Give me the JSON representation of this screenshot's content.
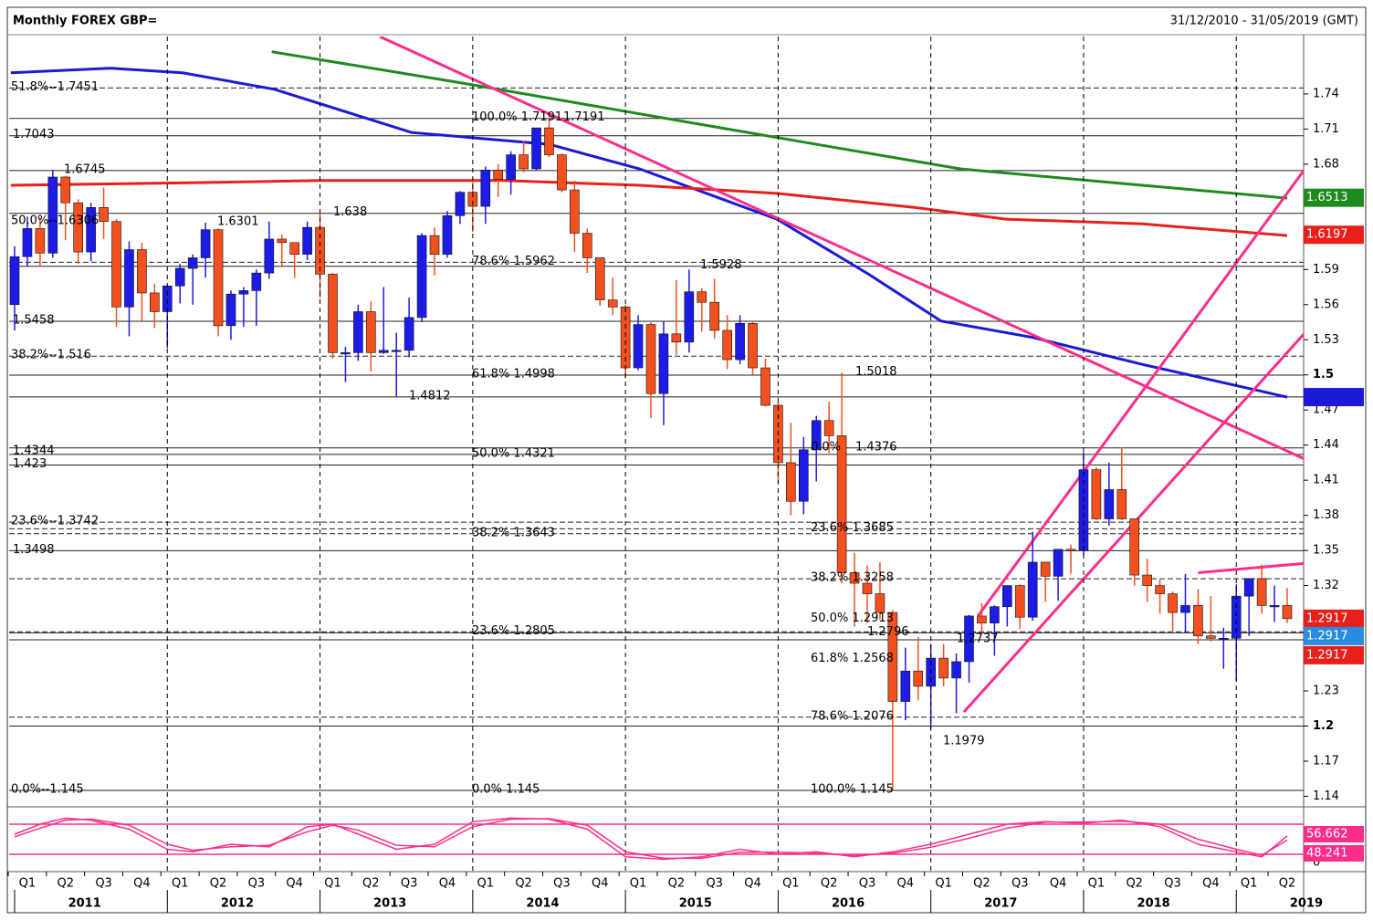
{
  "chart_data": {
    "type": "candlestick",
    "title": "Monthly FOREX GBP=",
    "subtitle": "31/12/2010 - 31/05/2019 (GMT)",
    "ylim": [
      1.131,
      1.814
    ],
    "yticks": [
      1.74,
      1.71,
      1.68,
      1.59,
      1.56,
      1.53,
      1.5,
      1.47,
      1.44,
      1.41,
      1.38,
      1.35,
      1.32,
      1.23,
      1.2,
      1.17,
      1.14
    ],
    "years": [
      2011,
      2012,
      2013,
      2014,
      2015,
      2016,
      2017,
      2018,
      2019
    ],
    "quarters": [
      "Q1",
      "Q2",
      "Q3",
      "Q4",
      "Q1",
      "Q2",
      "Q3",
      "Q4",
      "Q1",
      "Q2",
      "Q3",
      "Q4",
      "Q1",
      "Q2",
      "Q3",
      "Q4",
      "Q1",
      "Q2",
      "Q3",
      "Q4",
      "Q1",
      "Q2",
      "Q3",
      "Q4",
      "Q1",
      "Q2",
      "Q3",
      "Q4",
      "Q1",
      "Q2",
      "Q3",
      "Q4",
      "Q1",
      "Q2"
    ],
    "up_color": "#1c1ce6",
    "down_color": "#f2511f",
    "open": [
      1.56,
      1.601,
      1.625,
      1.604,
      1.669,
      1.647,
      1.605,
      1.643,
      1.631,
      1.558,
      1.607,
      1.57,
      1.554,
      1.576,
      1.591,
      1.6,
      1.624,
      1.542,
      1.569,
      1.572,
      1.587,
      1.616,
      1.613,
      1.603,
      1.626,
      1.586,
      1.519,
      1.519,
      1.554,
      1.519,
      1.521,
      1.521,
      1.549,
      1.619,
      1.603,
      1.636,
      1.656,
      1.644,
      1.675,
      1.667,
      1.688,
      1.676,
      1.711,
      1.688,
      1.658,
      1.621,
      1.6,
      1.564,
      1.558,
      1.506,
      1.543,
      1.484,
      1.535,
      1.528,
      1.571,
      1.562,
      1.538,
      1.513,
      1.544,
      1.506,
      1.474,
      1.425,
      1.392,
      1.436,
      1.461,
      1.448,
      1.331,
      1.322,
      1.313,
      1.297,
      1.221,
      1.247,
      1.234,
      1.258,
      1.241,
      1.255,
      1.294,
      1.288,
      1.302,
      1.32,
      1.293,
      1.34,
      1.328,
      1.351,
      1.35,
      1.419,
      1.377,
      1.402,
      1.377,
      1.329,
      1.32,
      1.313,
      1.297,
      1.303,
      1.277,
      1.275,
      1.275,
      1.311,
      1.326,
      1.303,
      1.303
    ],
    "high": [
      1.61,
      1.635,
      1.634,
      1.675,
      1.67,
      1.65,
      1.647,
      1.66,
      1.633,
      1.614,
      1.613,
      1.578,
      1.577,
      1.595,
      1.603,
      1.63,
      1.625,
      1.572,
      1.575,
      1.59,
      1.631,
      1.62,
      1.613,
      1.631,
      1.638,
      1.587,
      1.524,
      1.56,
      1.563,
      1.575,
      1.536,
      1.566,
      1.621,
      1.626,
      1.64,
      1.657,
      1.668,
      1.678,
      1.68,
      1.691,
      1.7,
      1.711,
      1.719,
      1.689,
      1.666,
      1.625,
      1.6,
      1.583,
      1.56,
      1.551,
      1.545,
      1.546,
      1.581,
      1.59,
      1.574,
      1.582,
      1.551,
      1.551,
      1.546,
      1.514,
      1.477,
      1.459,
      1.447,
      1.465,
      1.477,
      1.502,
      1.348,
      1.337,
      1.34,
      1.299,
      1.267,
      1.276,
      1.27,
      1.27,
      1.262,
      1.295,
      1.305,
      1.303,
      1.32,
      1.321,
      1.366,
      1.34,
      1.351,
      1.355,
      1.434,
      1.421,
      1.425,
      1.438,
      1.377,
      1.343,
      1.325,
      1.315,
      1.33,
      1.317,
      1.311,
      1.284,
      1.321,
      1.326,
      1.338,
      1.32,
      1.318
    ],
    "low": [
      1.538,
      1.593,
      1.592,
      1.6,
      1.615,
      1.595,
      1.597,
      1.616,
      1.541,
      1.533,
      1.546,
      1.54,
      1.523,
      1.561,
      1.56,
      1.583,
      1.533,
      1.53,
      1.541,
      1.542,
      1.582,
      1.592,
      1.583,
      1.598,
      1.566,
      1.514,
      1.494,
      1.512,
      1.503,
      1.518,
      1.481,
      1.515,
      1.545,
      1.585,
      1.6,
      1.629,
      1.622,
      1.629,
      1.652,
      1.654,
      1.673,
      1.675,
      1.686,
      1.656,
      1.605,
      1.587,
      1.559,
      1.551,
      1.497,
      1.504,
      1.463,
      1.457,
      1.517,
      1.519,
      1.537,
      1.531,
      1.505,
      1.509,
      1.5,
      1.473,
      1.408,
      1.38,
      1.381,
      1.409,
      1.433,
      1.322,
      1.285,
      1.288,
      1.291,
      1.145,
      1.205,
      1.222,
      1.198,
      1.234,
      1.211,
      1.237,
      1.279,
      1.26,
      1.285,
      1.283,
      1.29,
      1.306,
      1.307,
      1.33,
      1.346,
      1.376,
      1.371,
      1.376,
      1.32,
      1.306,
      1.296,
      1.28,
      1.28,
      1.27,
      1.272,
      1.249,
      1.238,
      1.277,
      1.296,
      1.289,
      1.288
    ],
    "close": [
      1.601,
      1.625,
      1.604,
      1.669,
      1.647,
      1.605,
      1.643,
      1.631,
      1.558,
      1.607,
      1.57,
      1.554,
      1.576,
      1.591,
      1.6,
      1.624,
      1.542,
      1.569,
      1.572,
      1.587,
      1.616,
      1.613,
      1.603,
      1.626,
      1.586,
      1.519,
      1.519,
      1.554,
      1.519,
      1.521,
      1.521,
      1.549,
      1.619,
      1.603,
      1.636,
      1.656,
      1.644,
      1.675,
      1.667,
      1.688,
      1.676,
      1.711,
      1.688,
      1.658,
      1.621,
      1.6,
      1.564,
      1.558,
      1.506,
      1.543,
      1.484,
      1.535,
      1.528,
      1.571,
      1.562,
      1.538,
      1.513,
      1.544,
      1.506,
      1.474,
      1.425,
      1.392,
      1.436,
      1.461,
      1.448,
      1.331,
      1.322,
      1.313,
      1.297,
      1.221,
      1.247,
      1.234,
      1.258,
      1.241,
      1.255,
      1.294,
      1.288,
      1.302,
      1.32,
      1.293,
      1.34,
      1.328,
      1.351,
      1.35,
      1.419,
      1.377,
      1.402,
      1.377,
      1.329,
      1.32,
      1.313,
      1.297,
      1.303,
      1.277,
      1.275,
      1.275,
      1.311,
      1.326,
      1.303,
      1.303,
      1.2917
    ],
    "overlays": [
      {
        "color": "#1a1ad6",
        "x": [
          -0.3,
          7.5,
          13.2,
          20.4,
          31.2,
          42,
          49.1,
          59.9,
          67.1,
          72.8,
          80,
          88.6,
          100
        ],
        "values": [
          1.758,
          1.762,
          1.758,
          1.744,
          1.707,
          1.697,
          1.676,
          1.633,
          1.586,
          1.546,
          1.532,
          1.509,
          1.481
        ]
      },
      {
        "color": "#e8201c",
        "x": [
          -0.3,
          13.2,
          24,
          38.4,
          49.1,
          59.9,
          70.7,
          77.9,
          88.6,
          100
        ],
        "values": [
          1.662,
          1.664,
          1.666,
          1.666,
          1.662,
          1.655,
          1.643,
          1.633,
          1.629,
          1.619
        ]
      },
      {
        "color": "#1f8a1f",
        "x": [
          20.2,
          34.8,
          49.1,
          63.5,
          74.3,
          88.6,
          100
        ],
        "values": [
          1.776,
          1.75,
          1.723,
          1.696,
          1.676,
          1.662,
          1.651
        ]
      },
      {
        "color": "#ff2d8a",
        "x": [
          28.7,
          101.4
        ],
        "values": [
          1.789,
          1.428
        ]
      },
      {
        "color": "#ff2d8a",
        "x": [
          75.7,
          101.4
        ],
        "values": [
          1.294,
          1.676
        ]
      },
      {
        "color": "#ff2d8a",
        "x": [
          74.6,
          101.4
        ],
        "values": [
          1.212,
          1.536
        ]
      },
      {
        "color": "#ff2d8a",
        "x": [
          93,
          101.4
        ],
        "values": [
          1.331,
          1.339
        ]
      }
    ],
    "levels": [
      {
        "value": 1.7451,
        "style": "dashed"
      },
      {
        "value": 1.7191,
        "style": "solid"
      },
      {
        "value": 1.7043,
        "style": "solid"
      },
      {
        "value": 1.6745,
        "style": "solid"
      },
      {
        "value": 1.638,
        "style": "solid"
      },
      {
        "value": 1.5962,
        "style": "dashed"
      },
      {
        "value": 1.5928,
        "style": "solid"
      },
      {
        "value": 1.5458,
        "style": "solid"
      },
      {
        "value": 1.516,
        "style": "dashed"
      },
      {
        "value": 1.4998,
        "style": "solid"
      },
      {
        "value": 1.4812,
        "style": "solid"
      },
      {
        "value": 1.4376,
        "style": "solid"
      },
      {
        "value": 1.4321,
        "style": "solid"
      },
      {
        "value": 1.423,
        "style": "solid"
      },
      {
        "value": 1.3742,
        "style": "dashed"
      },
      {
        "value": 1.3685,
        "style": "dashed"
      },
      {
        "value": 1.3643,
        "style": "dashed"
      },
      {
        "value": 1.3498,
        "style": "solid"
      },
      {
        "value": 1.3258,
        "style": "dashed"
      },
      {
        "value": 1.2805,
        "style": "dashed"
      },
      {
        "value": 1.2796,
        "style": "solid"
      },
      {
        "value": 1.2737,
        "style": "solid"
      },
      {
        "value": 1.2076,
        "style": "dashed"
      },
      {
        "value": 1.2,
        "style": "solid"
      },
      {
        "value": 1.145,
        "style": "solid"
      }
    ],
    "annotations": [
      {
        "label": "51.8%--1.7451",
        "value": 1.7451
      },
      {
        "label": "1.7043",
        "value": 1.7043
      },
      {
        "label": "1.6745",
        "value": 1.6745
      },
      {
        "label": "50.0%--1.6306",
        "value": 1.6306
      },
      {
        "label": "1.6301",
        "value": 1.6301
      },
      {
        "label": "1.638",
        "value": 1.638
      },
      {
        "label": "1.5458",
        "value": 1.5458
      },
      {
        "label": "38.2%--1.516",
        "value": 1.516
      },
      {
        "label": "1.4812",
        "value": 1.4812
      },
      {
        "label": "1.4344",
        "value": 1.4344
      },
      {
        "label": "1.423",
        "value": 1.423
      },
      {
        "label": "23.6%--1.3742",
        "value": 1.3742
      },
      {
        "label": "1.3498",
        "value": 1.3498
      },
      {
        "label": "0.0%--1.145",
        "value": 1.145
      },
      {
        "label": "100.0% 1.7191",
        "value": 1.7191
      },
      {
        "label": "1.7191",
        "value": 1.7191
      },
      {
        "label": "78.6%   1.5962",
        "value": 1.5962
      },
      {
        "label": "1.5928",
        "value": 1.5928
      },
      {
        "label": "61.8%   1.4998",
        "value": 1.4998
      },
      {
        "label": "1.5018",
        "value": 1.5018
      },
      {
        "label": "50.0%   1.4321",
        "value": 1.4321
      },
      {
        "label": "38.2%   1.3643",
        "value": 1.3643
      },
      {
        "label": "23.6%   1.2805",
        "value": 1.2805
      },
      {
        "label": "0.0%    1.145",
        "value": 1.145
      },
      {
        "label": "0.0%",
        "value": 1.4376
      },
      {
        "label": "1.4376",
        "value": 1.4376
      },
      {
        "label": "23.6%   1.3685",
        "value": 1.3685
      },
      {
        "label": "38.2%   1.3258",
        "value": 1.3258
      },
      {
        "label": "50.0%   1.2913",
        "value": 1.2913
      },
      {
        "label": "1.2796",
        "value": 1.2796
      },
      {
        "label": "1.2737",
        "value": 1.2737
      },
      {
        "label": "61.8%   1.2568",
        "value": 1.2568
      },
      {
        "label": "78.6%   1.2076",
        "value": 1.2076
      },
      {
        "label": "1.1979",
        "value": 1.1979
      },
      {
        "label": "100.0% 1.145",
        "value": 1.145
      }
    ],
    "price_tags": [
      {
        "label": "1.6513",
        "value": 1.6513,
        "color": "#1f8a1f"
      },
      {
        "label": "1.6197",
        "value": 1.6197,
        "color": "#e8201c"
      },
      {
        "label": "1.2917",
        "value": 1.2917,
        "color": "#e8201c"
      },
      {
        "label": "1.2917",
        "value": 1.2917,
        "color": "#2a8ce0"
      },
      {
        "label": "1.2917",
        "value": 1.2917,
        "color": "#e8201c"
      }
    ],
    "oscillator": {
      "ylim": [
        0,
        100
      ],
      "yticks": [
        0
      ],
      "levels": [
        80,
        20
      ],
      "level_color": "#ff2d8a",
      "series": [
        {
          "color": "#ff2d8a",
          "x": [
            0,
            2,
            4,
            6,
            9,
            12,
            14,
            17,
            20,
            23,
            25,
            27,
            30,
            33,
            36,
            39,
            42,
            45,
            48,
            51,
            54,
            57,
            60,
            63,
            66,
            69,
            72,
            75,
            78,
            81,
            84,
            87,
            90,
            93,
            96,
            98,
            100
          ],
          "values": [
            60,
            80,
            92,
            88,
            70,
            30,
            25,
            40,
            35,
            75,
            80,
            60,
            30,
            40,
            85,
            92,
            90,
            70,
            15,
            10,
            15,
            30,
            20,
            25,
            15,
            25,
            40,
            60,
            80,
            85,
            82,
            88,
            75,
            40,
            25,
            15,
            56.662
          ]
        },
        {
          "color": "#ff2d8a",
          "x": [
            0,
            2,
            4,
            6,
            9,
            12,
            14,
            17,
            20,
            23,
            25,
            27,
            30,
            33,
            36,
            39,
            42,
            45,
            48,
            51,
            54,
            57,
            60,
            63,
            66,
            69,
            72,
            75,
            78,
            81,
            84,
            87,
            90,
            93,
            96,
            98,
            100
          ],
          "values": [
            55,
            72,
            88,
            90,
            78,
            40,
            28,
            35,
            38,
            65,
            78,
            68,
            38,
            35,
            75,
            90,
            91,
            78,
            25,
            12,
            12,
            24,
            24,
            22,
            18,
            22,
            34,
            52,
            72,
            84,
            84,
            86,
            80,
            50,
            30,
            18,
            48.241
          ]
        }
      ],
      "tag_labels": [
        {
          "label": "56.662",
          "color": "#ff2d8a"
        },
        {
          "label": "48.241",
          "color": "#ff2d8a"
        }
      ]
    }
  }
}
